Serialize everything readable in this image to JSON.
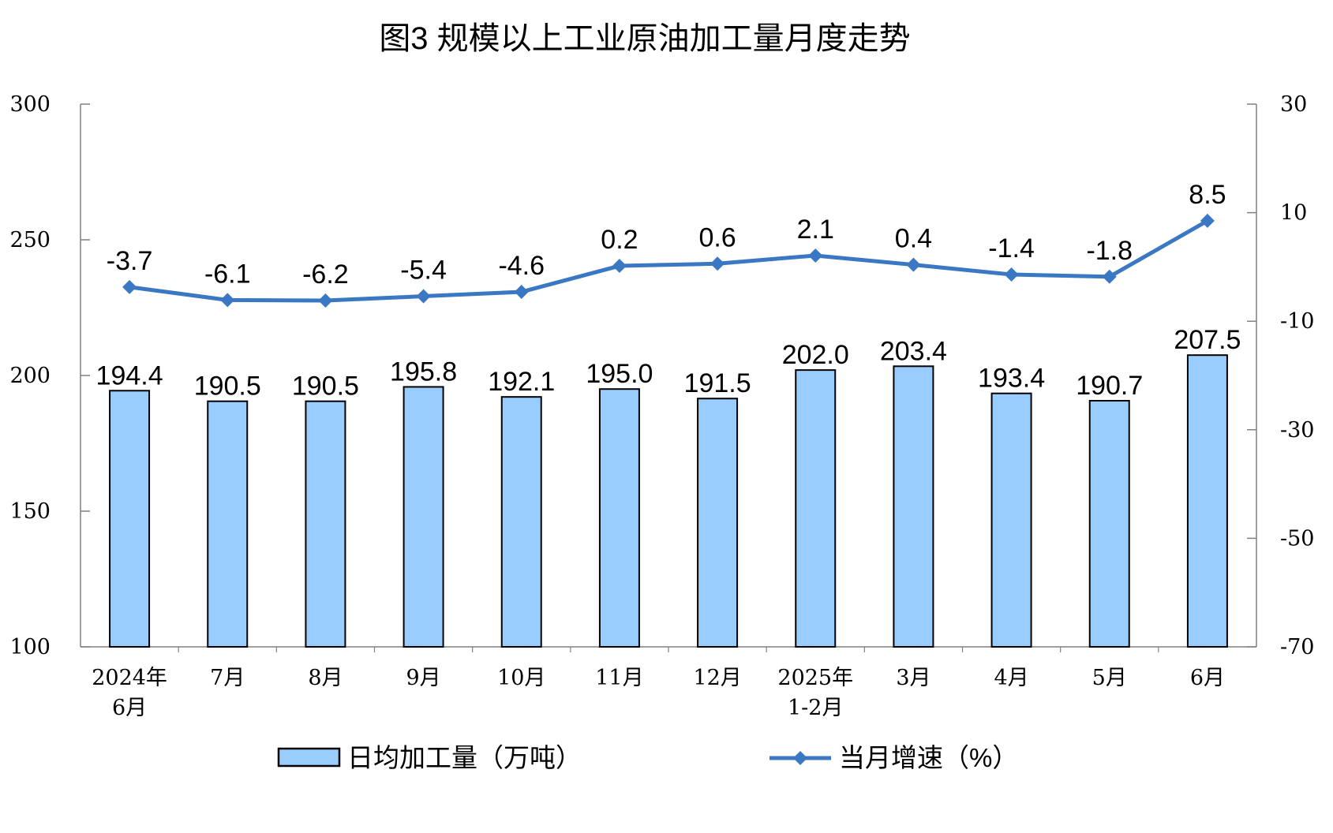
{
  "chart_data": {
    "type": "bar",
    "title": "图3  规模以上工业原油加工量月度走势",
    "categories": [
      [
        "2024年",
        "6月"
      ],
      [
        "7月"
      ],
      [
        "8月"
      ],
      [
        "9月"
      ],
      [
        "10月"
      ],
      [
        "11月"
      ],
      [
        "12月"
      ],
      [
        "2025年",
        "1-2月"
      ],
      [
        "3月"
      ],
      [
        "4月"
      ],
      [
        "5月"
      ],
      [
        "6月"
      ]
    ],
    "series": [
      {
        "name": "日均加工量（万吨）",
        "type": "bar",
        "axis": "left",
        "values": [
          194.4,
          190.5,
          190.5,
          195.8,
          192.1,
          195.0,
          191.5,
          202.0,
          203.4,
          193.4,
          190.7,
          207.5
        ],
        "labels": [
          "194.4",
          "190.5",
          "190.5",
          "195.8",
          "192.1",
          "195.0",
          "191.5",
          "202.0",
          "203.4",
          "193.4",
          "190.7",
          "207.5"
        ]
      },
      {
        "name": "当月增速（%）",
        "type": "line",
        "axis": "right",
        "values": [
          -3.7,
          -6.1,
          -6.2,
          -5.4,
          -4.6,
          0.2,
          0.6,
          2.1,
          0.4,
          -1.4,
          -1.8,
          8.5
        ],
        "labels": [
          "-3.7",
          "-6.1",
          "-6.2",
          "-5.4",
          "-4.6",
          "0.2",
          "0.6",
          "2.1",
          "0.4",
          "-1.4",
          "-1.8",
          "8.5"
        ]
      }
    ],
    "y_left": {
      "min": 100,
      "max": 300,
      "ticks": [
        100,
        150,
        200,
        250,
        300
      ]
    },
    "y_right": {
      "min": -70,
      "max": 30,
      "ticks": [
        -70,
        -50,
        -30,
        -10,
        10,
        30
      ]
    },
    "grid": false,
    "legend_position": "bottom",
    "colors": {
      "bar_fill": "#99CCFF",
      "bar_stroke": "#000000",
      "line": "#3A78C3",
      "axis": "#808080",
      "text": "#000000"
    }
  }
}
